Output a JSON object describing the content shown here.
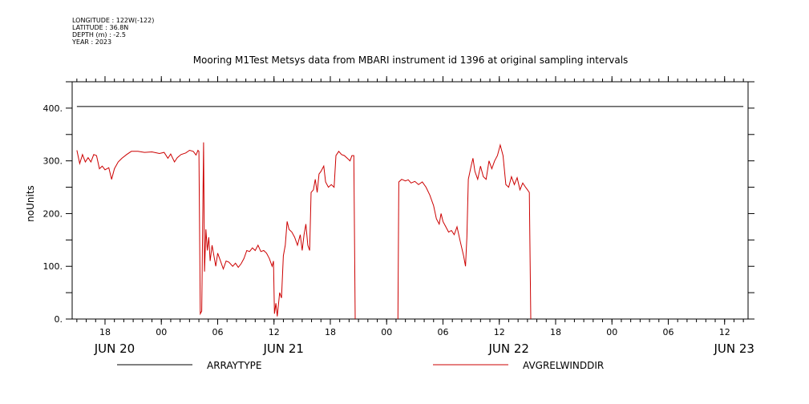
{
  "header": {
    "longitude": "LONGITUDE : 122W(-122)",
    "latitude": "LATITUDE : 36.8N",
    "depth": "DEPTH (m) : -2.5",
    "year": "YEAR : 2023"
  },
  "chart_data": {
    "type": "line",
    "title": "Mooring M1Test Metsys data from MBARI instrument id 1396 at original sampling intervals",
    "xlabel": "",
    "ylabel": "noUnits",
    "x_unit": "hours since JUN 20 00:00 (2023)",
    "xlim": [
      14.5,
      86.5
    ],
    "ylim": [
      0,
      450
    ],
    "y_ticks": [
      0,
      100,
      200,
      300,
      400
    ],
    "y_tick_labels": [
      "0.",
      "100.",
      "200.",
      "300.",
      "400."
    ],
    "x_ticks": [
      {
        "x": 18,
        "label": "18"
      },
      {
        "x": 24,
        "label": "00"
      },
      {
        "x": 30,
        "label": "06"
      },
      {
        "x": 36,
        "label": "12"
      },
      {
        "x": 42,
        "label": "18"
      },
      {
        "x": 48,
        "label": "00"
      },
      {
        "x": 54,
        "label": "06"
      },
      {
        "x": 60,
        "label": "12"
      },
      {
        "x": 66,
        "label": "18"
      },
      {
        "x": 72,
        "label": "00"
      },
      {
        "x": 78,
        "label": "06"
      },
      {
        "x": 84,
        "label": "12"
      }
    ],
    "date_labels": [
      {
        "x": 18,
        "label": "JUN 20"
      },
      {
        "x": 36,
        "label": "JUN 21"
      },
      {
        "x": 60,
        "label": "JUN 22"
      },
      {
        "x": 84,
        "label": "JUN 23"
      }
    ],
    "grid": false,
    "legend_position": "bottom",
    "series": [
      {
        "name": "ARRAYTYPE",
        "color": "#000000",
        "points": [
          [
            15.0,
            403
          ],
          [
            86.0,
            403
          ]
        ]
      },
      {
        "name": "AVGRELWINDDIR",
        "color": "#cc0000",
        "points": [
          [
            15.0,
            320
          ],
          [
            15.3,
            295
          ],
          [
            15.6,
            312
          ],
          [
            15.9,
            298
          ],
          [
            16.2,
            306
          ],
          [
            16.5,
            298
          ],
          [
            16.8,
            312
          ],
          [
            17.1,
            310
          ],
          [
            17.4,
            285
          ],
          [
            17.7,
            290
          ],
          [
            18.0,
            283
          ],
          [
            18.4,
            287
          ],
          [
            18.7,
            265
          ],
          [
            19.0,
            285
          ],
          [
            19.4,
            298
          ],
          [
            19.8,
            305
          ],
          [
            20.3,
            312
          ],
          [
            20.8,
            318
          ],
          [
            21.5,
            318
          ],
          [
            22.2,
            316
          ],
          [
            23.0,
            317
          ],
          [
            23.8,
            314
          ],
          [
            24.3,
            316
          ],
          [
            24.7,
            305
          ],
          [
            25.0,
            313
          ],
          [
            25.4,
            298
          ],
          [
            25.7,
            306
          ],
          [
            26.1,
            312
          ],
          [
            26.6,
            315
          ],
          [
            27.0,
            320
          ],
          [
            27.4,
            318
          ],
          [
            27.7,
            311
          ],
          [
            27.9,
            320
          ],
          [
            28.0,
            318
          ],
          [
            28.15,
            10
          ],
          [
            28.3,
            15
          ],
          [
            28.5,
            335
          ],
          [
            28.6,
            90
          ],
          [
            28.75,
            170
          ],
          [
            28.9,
            130
          ],
          [
            29.05,
            155
          ],
          [
            29.2,
            110
          ],
          [
            29.4,
            140
          ],
          [
            29.6,
            120
          ],
          [
            29.8,
            100
          ],
          [
            30.0,
            125
          ],
          [
            30.3,
            110
          ],
          [
            30.6,
            95
          ],
          [
            30.9,
            110
          ],
          [
            31.2,
            108
          ],
          [
            31.6,
            100
          ],
          [
            31.9,
            106
          ],
          [
            32.2,
            98
          ],
          [
            32.5,
            105
          ],
          [
            32.8,
            115
          ],
          [
            33.1,
            130
          ],
          [
            33.4,
            128
          ],
          [
            33.7,
            135
          ],
          [
            34.0,
            130
          ],
          [
            34.3,
            140
          ],
          [
            34.6,
            128
          ],
          [
            34.9,
            130
          ],
          [
            35.2,
            125
          ],
          [
            35.5,
            115
          ],
          [
            35.8,
            100
          ],
          [
            35.95,
            110
          ],
          [
            36.05,
            10
          ],
          [
            36.2,
            30
          ],
          [
            36.35,
            5
          ],
          [
            36.6,
            50
          ],
          [
            36.8,
            40
          ],
          [
            37.0,
            120
          ],
          [
            37.2,
            140
          ],
          [
            37.4,
            185
          ],
          [
            37.6,
            170
          ],
          [
            37.9,
            165
          ],
          [
            38.2,
            155
          ],
          [
            38.5,
            140
          ],
          [
            38.8,
            160
          ],
          [
            39.0,
            130
          ],
          [
            39.2,
            160
          ],
          [
            39.4,
            180
          ],
          [
            39.6,
            140
          ],
          [
            39.8,
            130
          ],
          [
            39.95,
            240
          ],
          [
            40.2,
            245
          ],
          [
            40.4,
            265
          ],
          [
            40.6,
            240
          ],
          [
            40.8,
            275
          ],
          [
            41.0,
            280
          ],
          [
            41.3,
            290
          ],
          [
            41.5,
            260
          ],
          [
            41.8,
            250
          ],
          [
            42.1,
            255
          ],
          [
            42.4,
            250
          ],
          [
            42.6,
            310
          ],
          [
            42.9,
            318
          ],
          [
            43.2,
            312
          ],
          [
            43.5,
            310
          ],
          [
            43.8,
            305
          ],
          [
            44.1,
            300
          ],
          [
            44.3,
            310
          ],
          [
            44.5,
            310
          ],
          [
            44.65,
            0
          ]
        ]
      },
      {
        "name": "AVGRELWINDDIR",
        "color": "#cc0000",
        "points": [
          [
            49.2,
            0
          ],
          [
            49.3,
            260
          ],
          [
            49.6,
            265
          ],
          [
            50.0,
            262
          ],
          [
            50.3,
            264
          ],
          [
            50.6,
            258
          ],
          [
            51.0,
            261
          ],
          [
            51.4,
            255
          ],
          [
            51.8,
            260
          ],
          [
            52.2,
            250
          ],
          [
            52.6,
            235
          ],
          [
            53.0,
            215
          ],
          [
            53.3,
            190
          ],
          [
            53.6,
            180
          ],
          [
            53.8,
            200
          ],
          [
            54.0,
            185
          ],
          [
            54.3,
            175
          ],
          [
            54.6,
            165
          ],
          [
            54.9,
            168
          ],
          [
            55.2,
            160
          ],
          [
            55.5,
            175
          ],
          [
            55.8,
            150
          ],
          [
            56.0,
            135
          ],
          [
            56.2,
            120
          ],
          [
            56.4,
            100
          ],
          [
            56.55,
            155
          ],
          [
            56.7,
            265
          ],
          [
            57.0,
            290
          ],
          [
            57.2,
            305
          ],
          [
            57.4,
            280
          ],
          [
            57.7,
            265
          ],
          [
            58.0,
            290
          ],
          [
            58.3,
            270
          ],
          [
            58.6,
            265
          ],
          [
            58.9,
            300
          ],
          [
            59.2,
            285
          ],
          [
            59.5,
            300
          ],
          [
            59.8,
            310
          ],
          [
            60.1,
            330
          ],
          [
            60.4,
            310
          ],
          [
            60.7,
            255
          ],
          [
            61.0,
            250
          ],
          [
            61.3,
            270
          ],
          [
            61.6,
            255
          ],
          [
            61.9,
            268
          ],
          [
            62.2,
            245
          ],
          [
            62.5,
            258
          ],
          [
            62.8,
            250
          ],
          [
            63.0,
            245
          ],
          [
            63.2,
            240
          ],
          [
            63.35,
            0
          ]
        ]
      }
    ]
  }
}
